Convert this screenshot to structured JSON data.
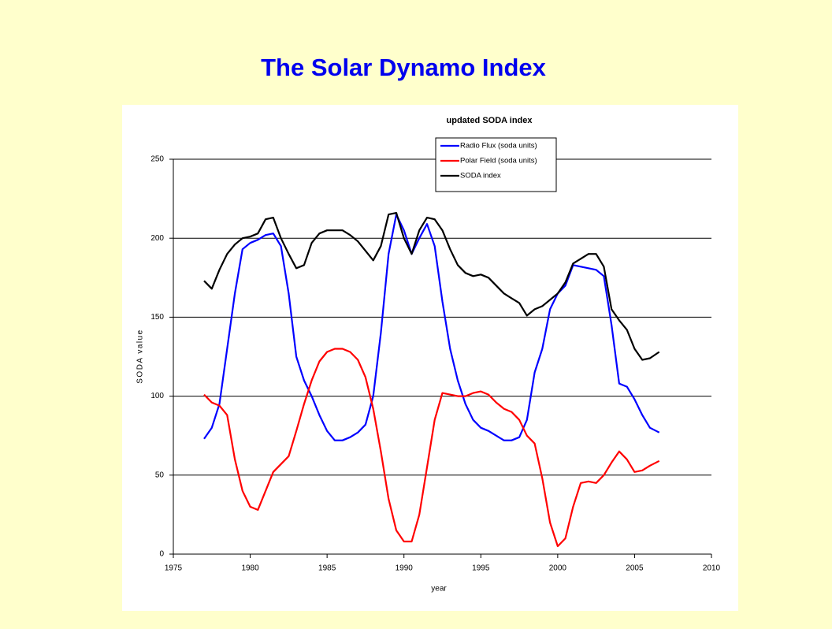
{
  "slide_title": "The Solar Dynamo Index",
  "chart_data": {
    "type": "line",
    "title": "updated SODA index",
    "xlabel": "year",
    "ylabel": "SODA value",
    "x": [
      1977,
      1977.5,
      1978,
      1978.5,
      1979,
      1979.5,
      1980,
      1980.5,
      1981,
      1981.5,
      1982,
      1982.5,
      1983,
      1983.5,
      1984,
      1984.5,
      1985,
      1985.5,
      1986,
      1986.5,
      1987,
      1987.5,
      1988,
      1988.5,
      1989,
      1989.5,
      1990,
      1990.5,
      1991,
      1991.5,
      1992,
      1992.5,
      1993,
      1993.5,
      1994,
      1994.5,
      1995,
      1995.5,
      1996,
      1996.5,
      1997,
      1997.5,
      1998,
      1998.5,
      1999,
      1999.5,
      2000,
      2000.5,
      2001,
      2001.5,
      2002,
      2002.5,
      2003,
      2003.5,
      2004,
      2004.5,
      2005,
      2005.5,
      2006,
      2006.6
    ],
    "series": [
      {
        "name": "Radio Flux (soda units)",
        "color": "#0000ff",
        "values": [
          73,
          80,
          95,
          130,
          165,
          193,
          197,
          199,
          202,
          203,
          195,
          165,
          125,
          110,
          100,
          88,
          78,
          72,
          72,
          74,
          77,
          82,
          100,
          140,
          190,
          215,
          205,
          190,
          200,
          209,
          195,
          160,
          130,
          110,
          95,
          85,
          80,
          78,
          75,
          72,
          72,
          74,
          85,
          115,
          130,
          155,
          165,
          170,
          183,
          182,
          181,
          180,
          176,
          145,
          108,
          106,
          98,
          88,
          80,
          77
        ]
      },
      {
        "name": "Polar Field (soda units)",
        "color": "#ff0000",
        "values": [
          101,
          96,
          94,
          88,
          60,
          40,
          30,
          28,
          40,
          52,
          57,
          62,
          78,
          95,
          110,
          122,
          128,
          130,
          130,
          128,
          123,
          112,
          92,
          65,
          35,
          15,
          8,
          8,
          25,
          55,
          85,
          102,
          101,
          100,
          100,
          102,
          103,
          101,
          96,
          92,
          90,
          85,
          75,
          70,
          48,
          20,
          5,
          10,
          30,
          45,
          46,
          45,
          50,
          58,
          65,
          60,
          52,
          53,
          56,
          59
        ]
      },
      {
        "name": "SODA index",
        "color": "#000000",
        "values": [
          173,
          168,
          180,
          190,
          196,
          200,
          201,
          203,
          212,
          213,
          200,
          190,
          181,
          183,
          197,
          203,
          205,
          205,
          205,
          202,
          198,
          192,
          186,
          195,
          215,
          216,
          200,
          190,
          205,
          213,
          212,
          205,
          193,
          183,
          178,
          176,
          177,
          175,
          170,
          165,
          162,
          159,
          151,
          155,
          157,
          161,
          165,
          172,
          184,
          187,
          190,
          190,
          182,
          155,
          148,
          142,
          130,
          123,
          124,
          128
        ]
      }
    ],
    "xlim": [
      1975,
      2010
    ],
    "xticks": [
      1975,
      1980,
      1985,
      1990,
      1995,
      2000,
      2005,
      2010
    ],
    "ylim": [
      0,
      250
    ],
    "yticks": [
      0,
      50,
      100,
      150,
      200,
      250
    ],
    "grid": true,
    "legend": "top"
  }
}
